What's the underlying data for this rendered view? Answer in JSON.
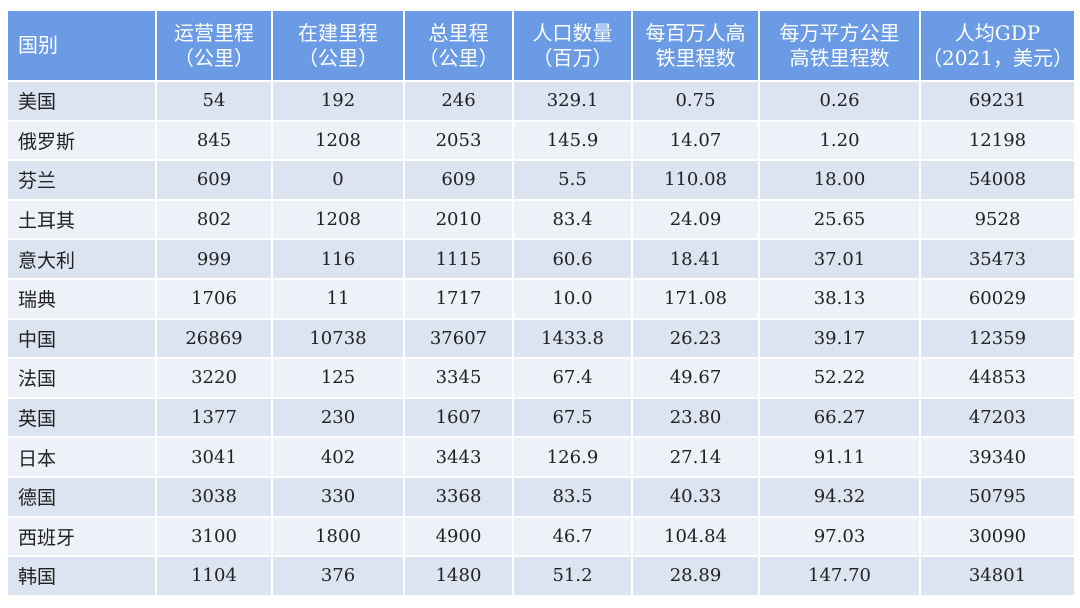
{
  "headers": [
    [
      "国别"
    ],
    [
      "运营里程",
      "（公里）"
    ],
    [
      "在建里程",
      "（公里）"
    ],
    [
      "总里程",
      "（公里）"
    ],
    [
      "人口数量",
      "（百万）"
    ],
    [
      "每百万人高",
      "铁里程数"
    ],
    [
      "每万平方公里",
      "高铁里程数"
    ],
    [
      "人均GDP",
      "（2021，美元）"
    ]
  ],
  "rows": [
    [
      "美国",
      "54",
      "192",
      "246",
      "329.1",
      "0.75",
      "0.26",
      "69231"
    ],
    [
      "俄罗斯",
      "845",
      "1208",
      "2053",
      "145.9",
      "14.07",
      "1.20",
      "12198"
    ],
    [
      "芬兰",
      "609",
      "0",
      "609",
      "5.5",
      "110.08",
      "18.00",
      "54008"
    ],
    [
      "土耳其",
      "802",
      "1208",
      "2010",
      "83.4",
      "24.09",
      "25.65",
      "9528"
    ],
    [
      "意大利",
      "999",
      "116",
      "1115",
      "60.6",
      "18.41",
      "37.01",
      "35473"
    ],
    [
      "瑞典",
      "1706",
      "11",
      "1717",
      "10.0",
      "171.08",
      "38.13",
      "60029"
    ],
    [
      "中国",
      "26869",
      "10738",
      "37607",
      "1433.8",
      "26.23",
      "39.17",
      "12359"
    ],
    [
      "法国",
      "3220",
      "125",
      "3345",
      "67.4",
      "49.67",
      "52.22",
      "44853"
    ],
    [
      "英国",
      "1377",
      "230",
      "1607",
      "67.5",
      "23.80",
      "66.27",
      "47203"
    ],
    [
      "日本",
      "3041",
      "402",
      "3443",
      "126.9",
      "27.14",
      "91.11",
      "39340"
    ],
    [
      "德国",
      "3038",
      "330",
      "3368",
      "83.5",
      "40.33",
      "94.32",
      "50795"
    ],
    [
      "西班牙",
      "3100",
      "1800",
      "4900",
      "46.7",
      "104.84",
      "97.03",
      "30090"
    ],
    [
      "韩国",
      "1104",
      "376",
      "1480",
      "51.2",
      "28.89",
      "147.70",
      "34801"
    ]
  ],
  "colors": {
    "header_bg": "#6a9be4",
    "header_text": "#ffffff",
    "row_odd_bg": "#dbe4f0",
    "row_even_bg": "#eef2f8"
  }
}
